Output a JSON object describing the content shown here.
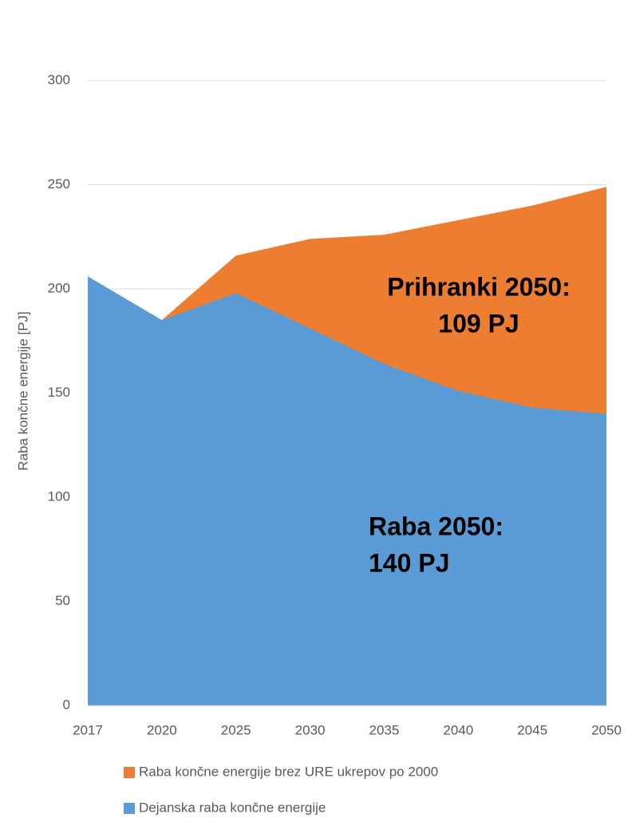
{
  "chart_data": {
    "type": "area",
    "y_label": "Raba končne energije [PJ]",
    "categories": [
      "2017",
      "2020",
      "2025",
      "2030",
      "2035",
      "2040",
      "2045",
      "2050"
    ],
    "series": [
      {
        "name": "Raba končne energije brez URE ukrepov po 2000",
        "color": "#ed7d31",
        "values": [
          206,
          185,
          216,
          224,
          226,
          233,
          240,
          249
        ]
      },
      {
        "name": "Dejanska raba končne energije",
        "color": "#5b9bd5",
        "values": [
          206,
          185,
          198,
          181,
          164,
          151,
          143,
          140
        ]
      }
    ],
    "ylim": [
      0,
      300
    ],
    "yticks": [
      0,
      50,
      100,
      150,
      200,
      250,
      300
    ],
    "grid": true,
    "annotations": [
      {
        "lines": [
          "Prihranki 2050:",
          "109 PJ"
        ]
      },
      {
        "lines": [
          "Raba 2050:",
          "140 PJ"
        ]
      }
    ]
  }
}
